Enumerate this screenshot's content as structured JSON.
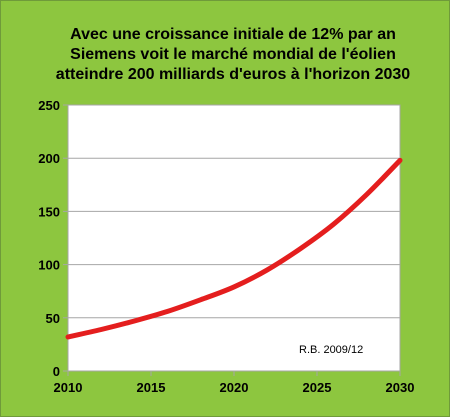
{
  "colors": {
    "background": "#8dc63f",
    "plot_area": "#ffffff",
    "gridline": "#a6a6a6",
    "line": "#e41e1e"
  },
  "chart_data": {
    "type": "line",
    "title_lines": [
      "Avec une croissance initiale de 12% par an",
      "Siemens voit le marché mondial de l'éolien",
      "atteindre 200 milliards  d'euros à l'horizon 2030"
    ],
    "xlabel": "",
    "ylabel": "",
    "xlim": [
      2010,
      2030
    ],
    "ylim": [
      0,
      250
    ],
    "x_ticks": [
      "2010",
      "2015",
      "2020",
      "2025",
      "2030"
    ],
    "y_ticks": [
      "0",
      "50",
      "100",
      "150",
      "200",
      "250"
    ],
    "grid": true,
    "legend": "none",
    "annotation": "R.B. 2009/12",
    "series": [
      {
        "x": [
          2010,
          2012,
          2014,
          2016,
          2018,
          2020,
          2022,
          2024,
          2026,
          2028,
          2030
        ],
        "values": [
          32,
          39,
          47,
          56,
          67,
          79,
          95,
          115,
          138,
          166,
          198
        ]
      }
    ]
  }
}
